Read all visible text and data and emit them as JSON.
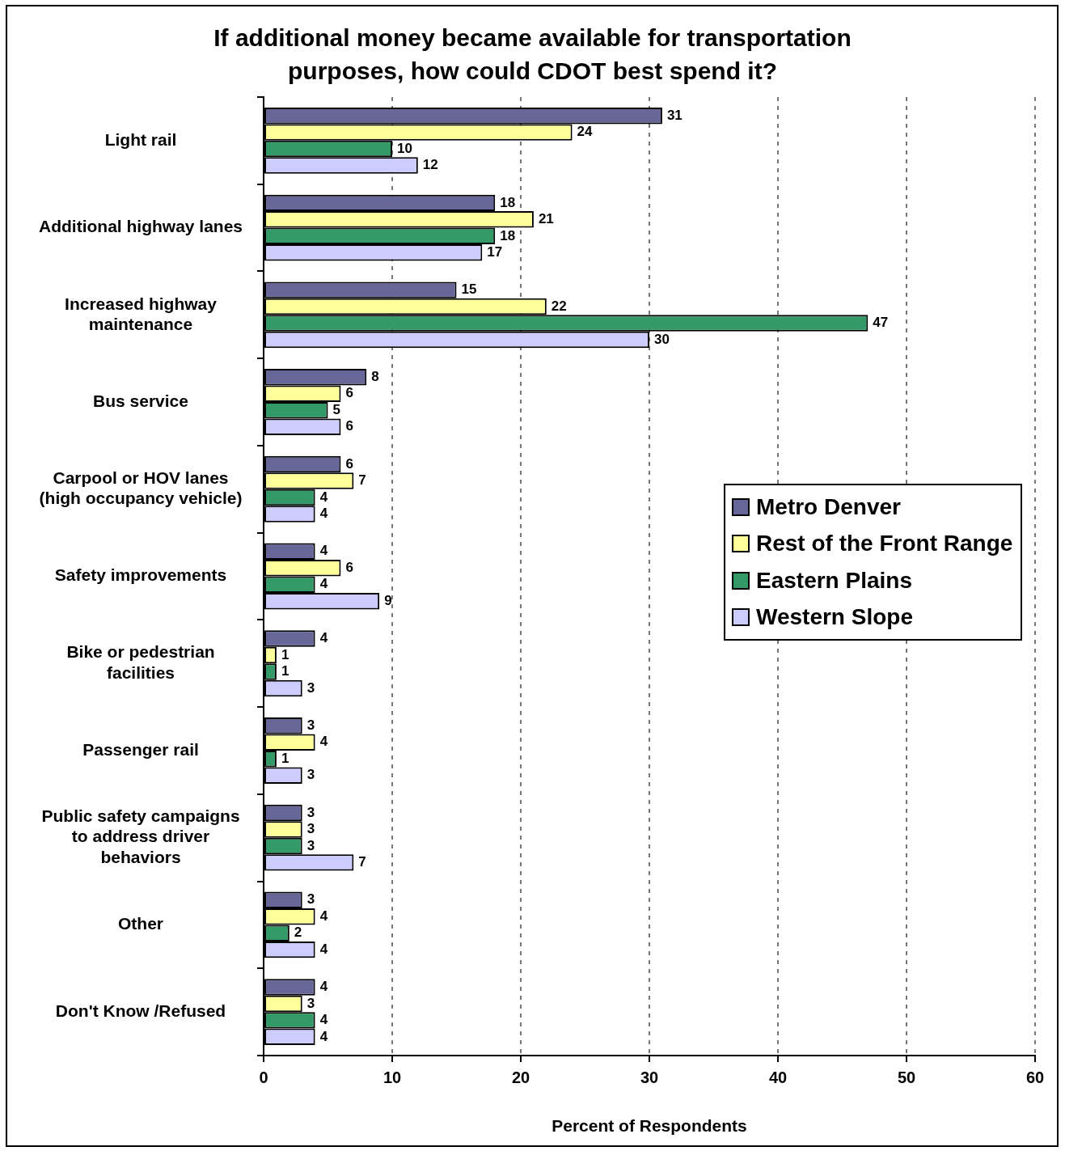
{
  "chart_data": {
    "type": "bar",
    "orientation": "horizontal",
    "title": "If additional money became available for transportation\npurposes, how could CDOT best spend it?",
    "xlabel": "Percent of Respondents",
    "categories": [
      "Light rail",
      "Additional highway lanes",
      "Increased highway\nmaintenance",
      "Bus service",
      "Carpool or HOV lanes\n(high occupancy vehicle)",
      "Safety improvements",
      "Bike or pedestrian\nfacilities",
      "Passenger rail",
      "Public safety campaigns\nto address driver\nbehaviors",
      "Other",
      "Don't Know /Refused"
    ],
    "series": [
      {
        "name": "Metro Denver",
        "color": "#666699",
        "values": [
          31,
          18,
          15,
          8,
          6,
          4,
          4,
          3,
          3,
          3,
          4
        ]
      },
      {
        "name": "Rest of the Front Range",
        "color": "#ffff99",
        "values": [
          24,
          21,
          22,
          6,
          7,
          6,
          1,
          4,
          3,
          4,
          3
        ]
      },
      {
        "name": "Eastern Plains",
        "color": "#339966",
        "values": [
          10,
          18,
          47,
          5,
          4,
          4,
          1,
          1,
          3,
          2,
          4
        ]
      },
      {
        "name": "Western Slope",
        "color": "#ccccff",
        "values": [
          12,
          17,
          30,
          6,
          4,
          9,
          3,
          3,
          7,
          4,
          4
        ]
      }
    ],
    "xlim": [
      0,
      60
    ],
    "xticks": [
      0,
      10,
      20,
      30,
      40,
      50,
      60
    ],
    "grid": "x",
    "legend": "right",
    "data_labels": true
  }
}
